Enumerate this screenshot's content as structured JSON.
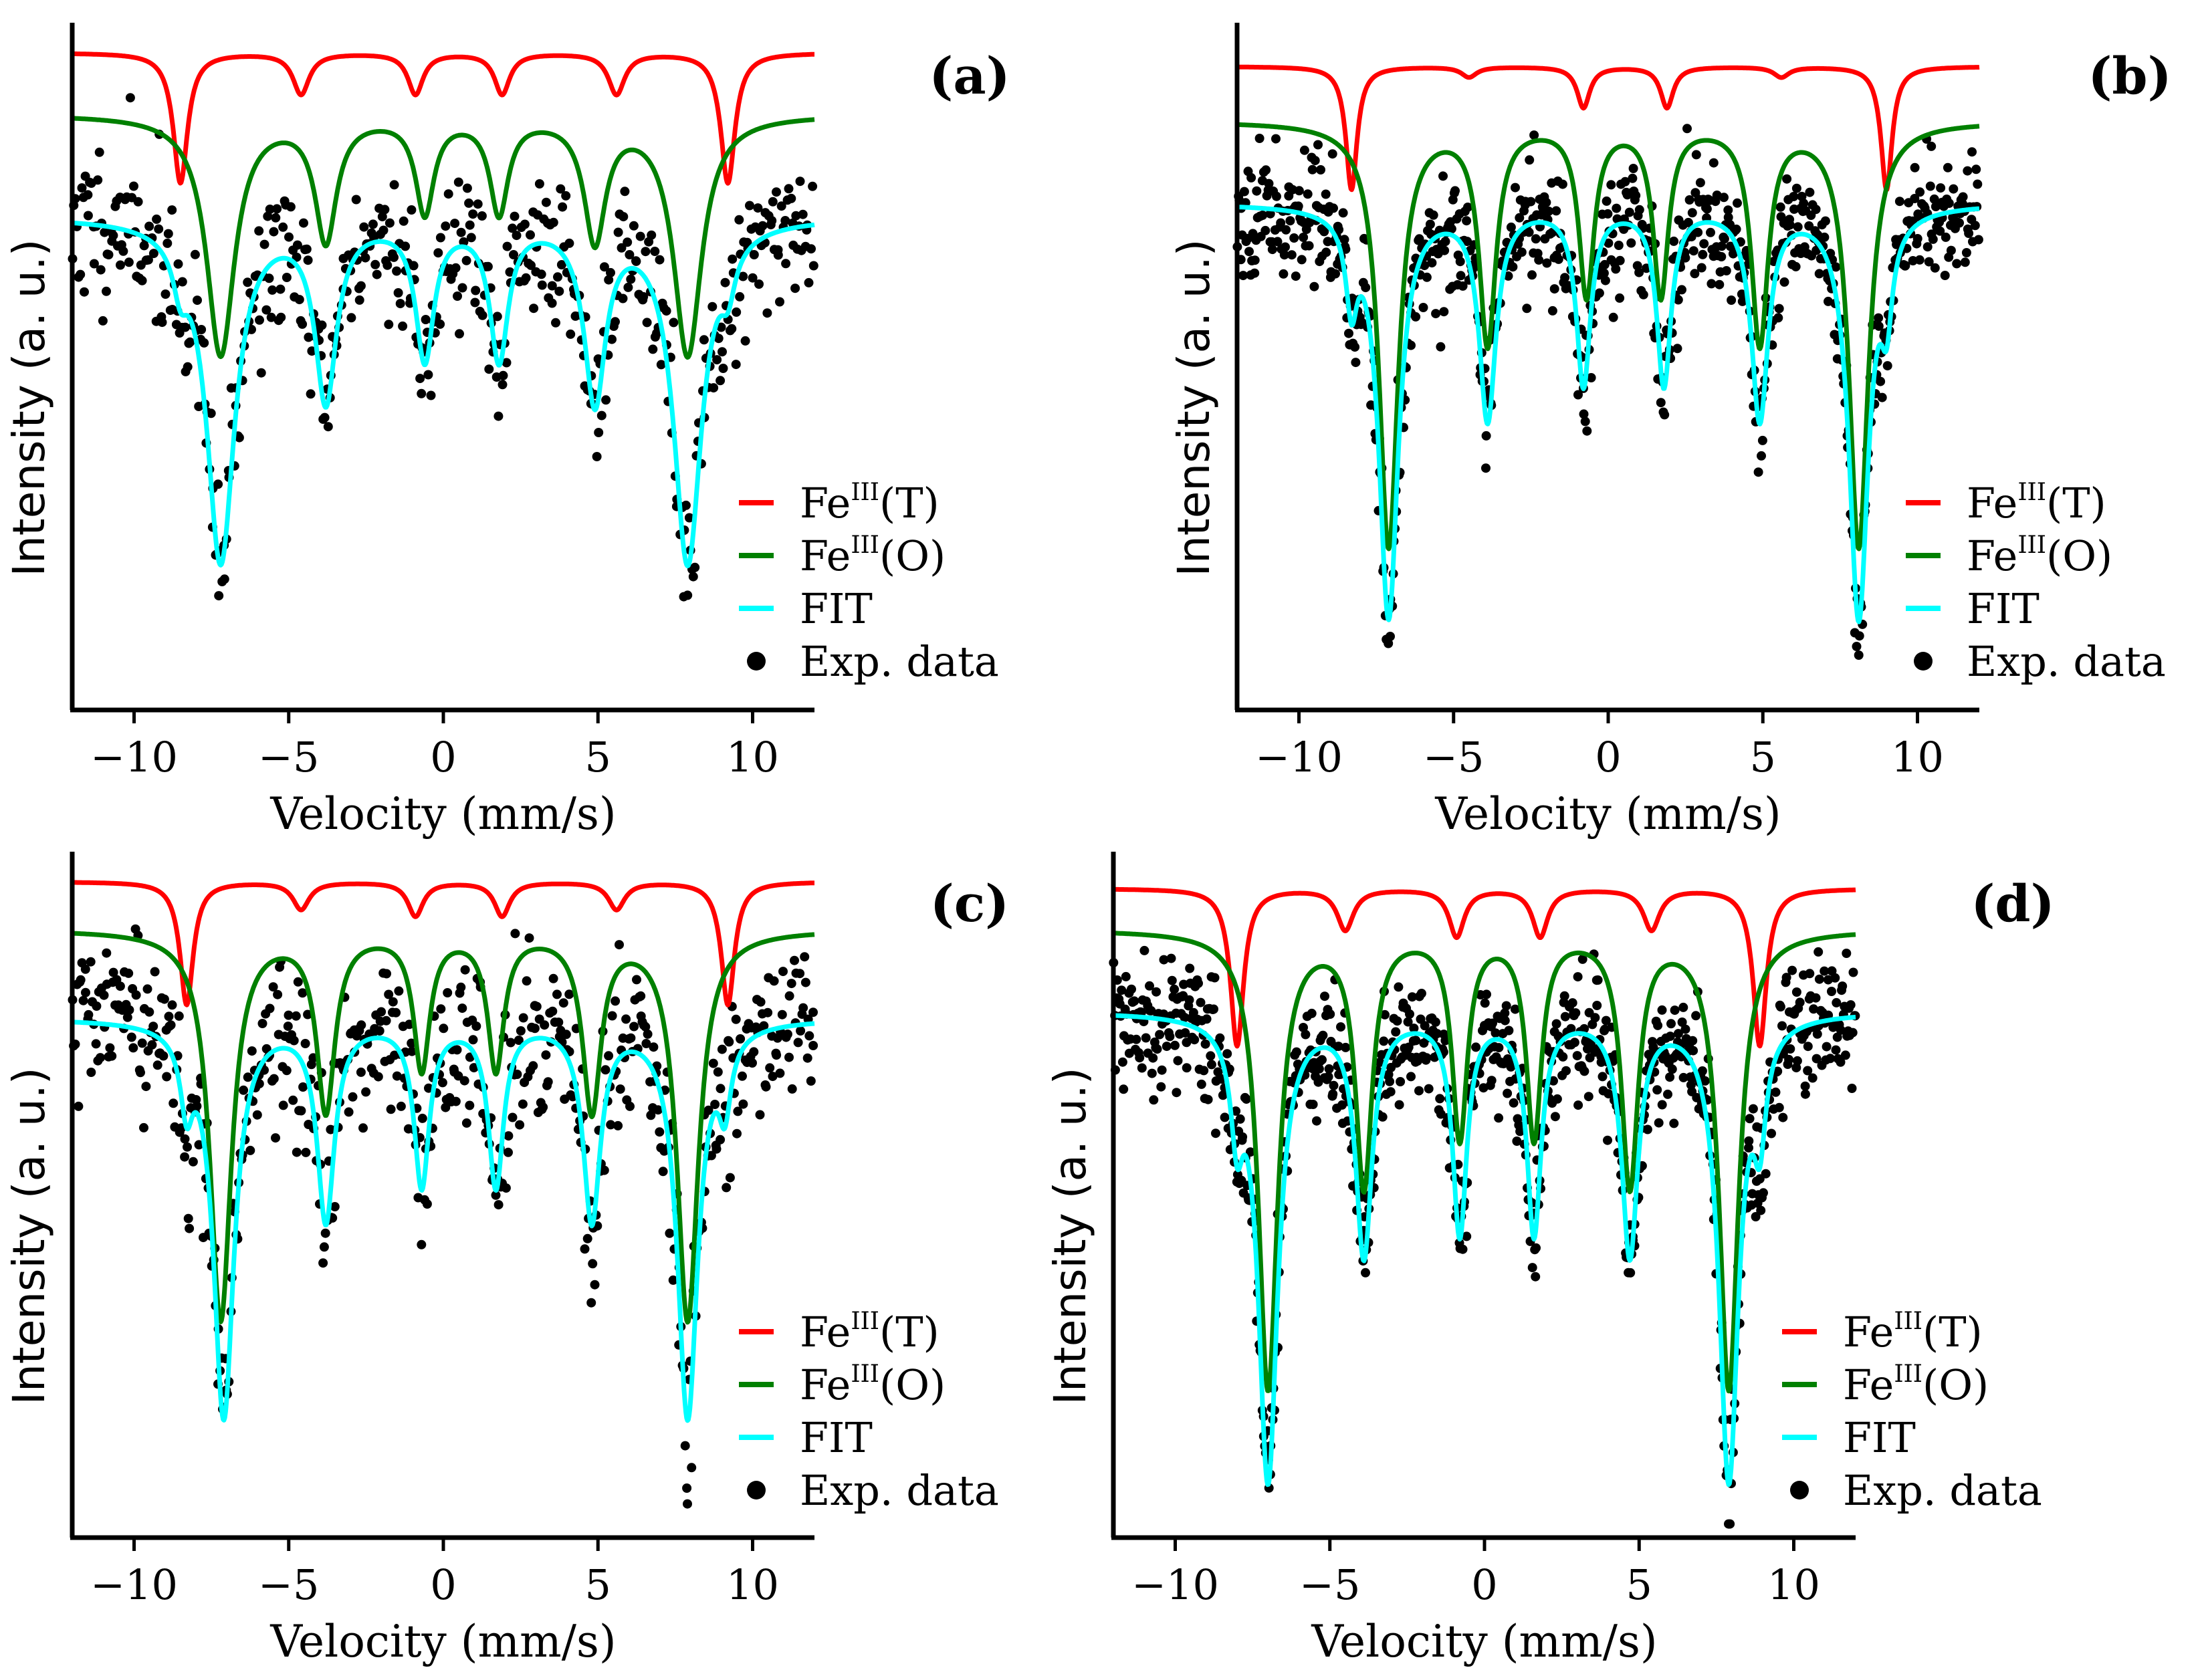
{
  "figure": {
    "description_panels": [
      "a",
      "b",
      "c",
      "d"
    ]
  },
  "chart_data": [
    {
      "type": "line",
      "panel_label": "(a)",
      "xlabel": "Velocity (mm/s)",
      "ylabel": "Intensity (a. u.)",
      "xlim": [
        -12,
        12
      ],
      "xticks": [
        "−10",
        "−5",
        "0",
        "5",
        "10"
      ],
      "xtick_values": [
        -10,
        -5,
        0,
        5,
        10
      ],
      "ylim": [
        0,
        1
      ],
      "yticks": [],
      "legend_position": "bottom-right",
      "legend": [
        {
          "name": "Fe",
          "sup": "III",
          "suffix": "(T)",
          "marker": "line",
          "color": "#ff0000"
        },
        {
          "name": "Fe",
          "sup": "III",
          "suffix": "(O)",
          "marker": "line",
          "color": "#008000"
        },
        {
          "name": "FIT",
          "sup": "",
          "suffix": "",
          "marker": "line",
          "color": "#00ffff"
        },
        {
          "name": "Exp. data",
          "sup": "",
          "suffix": "",
          "marker": "dot",
          "color": "#000000"
        }
      ],
      "series": [
        {
          "name": "FeIII(T)",
          "color": "#ff0000",
          "baseline": 0.96,
          "lines": [
            [
              -8.5,
              0.19,
              0.28
            ],
            [
              -4.6,
              0.06,
              0.32
            ],
            [
              -0.9,
              0.06,
              0.3
            ],
            [
              1.9,
              0.06,
              0.3
            ],
            [
              5.6,
              0.06,
              0.32
            ],
            [
              9.2,
              0.19,
              0.28
            ]
          ]
        },
        {
          "name": "FeIII(O)",
          "color": "#008000",
          "baseline": 0.87,
          "lines": [
            [
              -7.2,
              0.35,
              0.55
            ],
            [
              -3.8,
              0.18,
              0.42
            ],
            [
              -0.6,
              0.14,
              0.36
            ],
            [
              1.8,
              0.14,
              0.36
            ],
            [
              4.9,
              0.18,
              0.42
            ],
            [
              7.9,
              0.35,
              0.55
            ]
          ]
        },
        {
          "name": "FIT",
          "color": "#00ffff",
          "baseline": 0.72,
          "lines": [
            [
              -8.5,
              0.06,
              0.28
            ],
            [
              -7.2,
              0.5,
              0.55
            ],
            [
              -3.8,
              0.26,
              0.42
            ],
            [
              -0.6,
              0.2,
              0.36
            ],
            [
              1.8,
              0.2,
              0.36
            ],
            [
              4.9,
              0.26,
              0.42
            ],
            [
              7.9,
              0.5,
              0.55
            ],
            [
              9.2,
              0.06,
              0.28
            ]
          ]
        }
      ],
      "scatter": {
        "name": "Exp. data",
        "color": "#000000",
        "n_points": 512,
        "noise": 0.055,
        "seed": 11,
        "source": "FIT"
      }
    },
    {
      "type": "line",
      "panel_label": "(b)",
      "xlabel": "Velocity (mm/s)",
      "ylabel": "Intensity (a. u.)",
      "xlim": [
        -12,
        12
      ],
      "xticks": [
        "−10",
        "−5",
        "0",
        "5",
        "10"
      ],
      "xtick_values": [
        -10,
        -5,
        0,
        5,
        10
      ],
      "ylim": [
        0,
        1
      ],
      "yticks": [],
      "legend_position": "bottom-right",
      "legend": [
        {
          "name": "Fe",
          "sup": "III",
          "suffix": "(T)",
          "marker": "line",
          "color": "#ff0000"
        },
        {
          "name": "Fe",
          "sup": "III",
          "suffix": "(O)",
          "marker": "line",
          "color": "#008000"
        },
        {
          "name": "FIT",
          "sup": "",
          "suffix": "",
          "marker": "line",
          "color": "#00ffff"
        },
        {
          "name": "Exp. data",
          "sup": "",
          "suffix": "",
          "marker": "dot",
          "color": "#000000"
        }
      ],
      "series": [
        {
          "name": "FeIII(T)",
          "color": "#ff0000",
          "baseline": 0.94,
          "lines": [
            [
              -8.3,
              0.18,
              0.22
            ],
            [
              -4.5,
              0.015,
              0.3
            ],
            [
              -0.8,
              0.06,
              0.25
            ],
            [
              1.9,
              0.06,
              0.25
            ],
            [
              5.6,
              0.015,
              0.3
            ],
            [
              9.0,
              0.18,
              0.22
            ]
          ]
        },
        {
          "name": "FeIII(O)",
          "color": "#008000",
          "baseline": 0.86,
          "lines": [
            [
              -7.1,
              0.62,
              0.38
            ],
            [
              -3.9,
              0.32,
              0.33
            ],
            [
              -0.7,
              0.25,
              0.3
            ],
            [
              1.7,
              0.25,
              0.3
            ],
            [
              4.9,
              0.32,
              0.33
            ],
            [
              8.1,
              0.62,
              0.38
            ]
          ]
        },
        {
          "name": "FIT",
          "color": "#00ffff",
          "baseline": 0.74,
          "lines": [
            [
              -8.3,
              0.12,
              0.22
            ],
            [
              -7.1,
              0.6,
              0.38
            ],
            [
              -3.9,
              0.31,
              0.33
            ],
            [
              -0.8,
              0.26,
              0.28
            ],
            [
              1.8,
              0.26,
              0.28
            ],
            [
              4.9,
              0.31,
              0.33
            ],
            [
              8.1,
              0.6,
              0.38
            ],
            [
              9.0,
              0.12,
              0.22
            ]
          ]
        }
      ],
      "scatter": {
        "name": "Exp. data",
        "color": "#000000",
        "n_points": 760,
        "noise": 0.045,
        "seed": 23,
        "source": "FIT"
      }
    },
    {
      "type": "line",
      "panel_label": "(c)",
      "xlabel": "Velocity (mm/s)",
      "ylabel": "Intensity (a. u.)",
      "xlim": [
        -12,
        12
      ],
      "xticks": [
        "−10",
        "−5",
        "0",
        "5",
        "10"
      ],
      "xtick_values": [
        -10,
        -5,
        0,
        5,
        10
      ],
      "ylim": [
        0,
        1
      ],
      "yticks": [],
      "legend_position": "bottom-right",
      "legend": [
        {
          "name": "Fe",
          "sup": "III",
          "suffix": "(T)",
          "marker": "line",
          "color": "#ff0000"
        },
        {
          "name": "Fe",
          "sup": "III",
          "suffix": "(O)",
          "marker": "line",
          "color": "#008000"
        },
        {
          "name": "FIT",
          "sup": "",
          "suffix": "",
          "marker": "line",
          "color": "#00ffff"
        },
        {
          "name": "Exp. data",
          "sup": "",
          "suffix": "",
          "marker": "dot",
          "color": "#000000"
        }
      ],
      "series": [
        {
          "name": "FeIII(T)",
          "color": "#ff0000",
          "baseline": 0.96,
          "lines": [
            [
              -8.3,
              0.18,
              0.26
            ],
            [
              -4.6,
              0.04,
              0.32
            ],
            [
              -0.9,
              0.05,
              0.3
            ],
            [
              1.9,
              0.05,
              0.3
            ],
            [
              5.6,
              0.04,
              0.32
            ],
            [
              9.2,
              0.18,
              0.26
            ]
          ]
        },
        {
          "name": "FeIII(O)",
          "color": "#008000",
          "baseline": 0.89,
          "lines": [
            [
              -7.2,
              0.57,
              0.42
            ],
            [
              -3.8,
              0.26,
              0.36
            ],
            [
              -0.7,
              0.2,
              0.32
            ],
            [
              1.7,
              0.2,
              0.32
            ],
            [
              4.8,
              0.26,
              0.36
            ],
            [
              7.9,
              0.57,
              0.42
            ]
          ]
        },
        {
          "name": "FIT",
          "color": "#00ffff",
          "baseline": 0.76,
          "lines": [
            [
              -8.3,
              0.1,
              0.24
            ],
            [
              -7.1,
              0.58,
              0.4
            ],
            [
              -3.8,
              0.29,
              0.34
            ],
            [
              -0.7,
              0.24,
              0.3
            ],
            [
              1.7,
              0.24,
              0.3
            ],
            [
              4.8,
              0.29,
              0.34
            ],
            [
              7.9,
              0.58,
              0.4
            ],
            [
              9.1,
              0.1,
              0.24
            ]
          ]
        }
      ],
      "scatter": {
        "name": "Exp. data",
        "color": "#000000",
        "n_points": 560,
        "noise": 0.06,
        "seed": 37,
        "source": "FIT"
      }
    },
    {
      "type": "line",
      "panel_label": "(d)",
      "xlabel": "Velocity (mm/s)",
      "ylabel": "Intensity (a. u.)",
      "xlim": [
        -12,
        12
      ],
      "xticks": [
        "−10",
        "−5",
        "0",
        "5",
        "10"
      ],
      "xtick_values": [
        -10,
        -5,
        0,
        5,
        10
      ],
      "ylim": [
        0,
        1
      ],
      "yticks": [],
      "legend_position": "bottom-right",
      "legend": [
        {
          "name": "Fe",
          "sup": "III",
          "suffix": "(T)",
          "marker": "line",
          "color": "#ff0000"
        },
        {
          "name": "Fe",
          "sup": "III",
          "suffix": "(O)",
          "marker": "line",
          "color": "#008000"
        },
        {
          "name": "FIT",
          "sup": "",
          "suffix": "",
          "marker": "line",
          "color": "#00ffff"
        },
        {
          "name": "Exp. data",
          "sup": "",
          "suffix": "",
          "marker": "dot",
          "color": "#000000"
        }
      ],
      "series": [
        {
          "name": "FeIII(T)",
          "color": "#ff0000",
          "baseline": 0.95,
          "lines": [
            [
              -8.0,
              0.23,
              0.26
            ],
            [
              -4.5,
              0.06,
              0.32
            ],
            [
              -0.9,
              0.07,
              0.3
            ],
            [
              1.8,
              0.07,
              0.3
            ],
            [
              5.4,
              0.06,
              0.32
            ],
            [
              8.9,
              0.23,
              0.26
            ]
          ]
        },
        {
          "name": "FeIII(O)",
          "color": "#008000",
          "baseline": 0.89,
          "lines": [
            [
              -7.0,
              0.67,
              0.38
            ],
            [
              -3.9,
              0.37,
              0.33
            ],
            [
              -0.8,
              0.3,
              0.3
            ],
            [
              1.6,
              0.3,
              0.3
            ],
            [
              4.7,
              0.37,
              0.33
            ],
            [
              7.9,
              0.67,
              0.38
            ]
          ]
        },
        {
          "name": "FIT",
          "color": "#00ffff",
          "baseline": 0.77,
          "lines": [
            [
              -8.0,
              0.14,
              0.24
            ],
            [
              -7.0,
              0.68,
              0.38
            ],
            [
              -3.9,
              0.35,
              0.32
            ],
            [
              -0.8,
              0.32,
              0.28
            ],
            [
              1.6,
              0.32,
              0.28
            ],
            [
              4.7,
              0.35,
              0.32
            ],
            [
              7.9,
              0.68,
              0.38
            ],
            [
              8.9,
              0.14,
              0.24
            ]
          ]
        }
      ],
      "scatter": {
        "name": "Exp. data",
        "color": "#000000",
        "n_points": 840,
        "noise": 0.045,
        "seed": 53,
        "source": "FIT"
      }
    }
  ]
}
